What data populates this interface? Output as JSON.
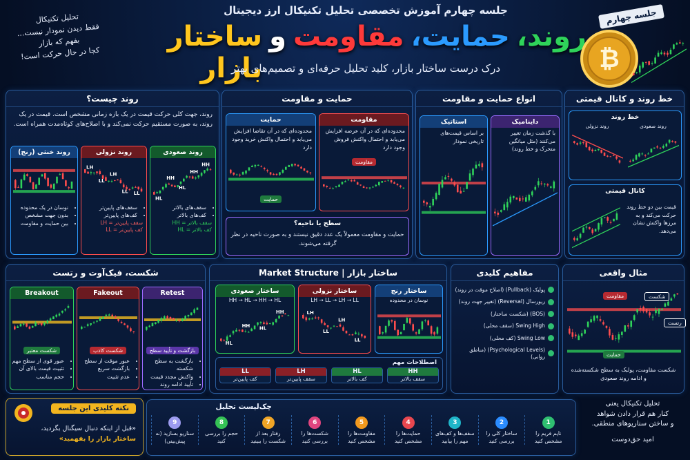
{
  "header": {
    "kicker": "جلسه چهارم آموزش تخصصی تحلیل تکنیکال ارز دیجیتال",
    "title": [
      {
        "text": "روند،",
        "color": "#2fd35a"
      },
      {
        "text": "حمایت،",
        "color": "#2b9bff"
      },
      {
        "text": "مقاومت",
        "color": "#ff3a3a"
      },
      {
        "text": "و",
        "color": "#ffffff"
      },
      {
        "text": "ساختار بازار",
        "color": "#ffc61e"
      }
    ],
    "subtitle": "درک درست ساختار بازار، کلید تحلیل حرفه‌ای و تصمیم‌های بهتر",
    "badge": "جلسه چهارم",
    "coin_symbol": "₿",
    "note": [
      "تحلیل تکنیکال",
      "فقط دیدن نمودار نیست...",
      "بفهم که بازار",
      "کجا در حال حرکت است!"
    ]
  },
  "trend": {
    "title": "روند چیست؟",
    "text": "روند، جهت کلی حرکت قیمت در یک بازه زمانی مشخص است. قیمت در یک روند، به صورت مستقیم حرکت نمی‌کند و با اصلاح‌های کوتاه‌مدت همراه است.",
    "cards": [
      {
        "title": "روند صعودی",
        "labels": [
          "HL",
          "HH",
          "HL",
          "HH",
          "HH"
        ],
        "bullets": [
          "سقف‌های بالاتر",
          "کف‌های بالاتر"
        ],
        "legend": [
          "HH = سقف بالاتر",
          "HL = کف بالاتر"
        ]
      },
      {
        "title": "روند نزولی",
        "labels": [
          "LH",
          "LL",
          "LH",
          "LL",
          "LL"
        ],
        "bullets": [
          "سقف‌های پایین‌تر",
          "کف‌های پایین‌تر"
        ],
        "legend": [
          "LH = سقف پایین‌تر",
          "LL = کف پایین‌تر"
        ]
      },
      {
        "title": "روند خنثی (رنج)",
        "bullets": [
          "نوسان در یک محدوده",
          "بدون جهت مشخص",
          "بین حمایت و مقاومت"
        ]
      }
    ]
  },
  "sr": {
    "title": "حمایت و مقاومت",
    "support": {
      "title": "حمایت",
      "text": "محدوده‌ای که در آن تقاضا افزایش می‌یابد و احتمال واکنش خرید وجود دارد",
      "label": "حمایت"
    },
    "resistance": {
      "title": "مقاومت",
      "text": "محدوده‌ای که در آن عرضه افزایش می‌یابد و احتمال واکنش فروش وجود دارد",
      "label": "مقاومت"
    },
    "zone": {
      "title": "سطح یا ناحیه؟",
      "text": "حمایت و مقاومت معمولاً یک عدد دقیق نیستند و به صورت ناحیه در نظر گرفته می‌شوند."
    }
  },
  "sr_types": {
    "title": "انواع حمایت و مقاومت",
    "static": {
      "title": "استاتیک",
      "text": "بر اساس قیمت‌های تاریخی نمودار"
    },
    "dynamic": {
      "title": "داینامیک",
      "text": "با گذشت زمان تغییر می‌کنند (مثل میانگین متحرک و خط روند)"
    }
  },
  "trendline": {
    "title": "خط روند و کانال قیمتی",
    "line": {
      "title": "خط روند",
      "up": "روند صعودی",
      "down": "روند نزولی"
    },
    "channel": {
      "title": "کانال قیمتی",
      "text": "قیمت بین دو خط روند حرکت می‌کند و به مرزها واکنش نشان می‌دهد."
    }
  },
  "breakout": {
    "title": "شکست، فیک‌آوت و رتست",
    "cards": [
      {
        "title": "Breakout",
        "label": "شکست معتبر",
        "bullets": [
          "عبور قوی از سطح مهم",
          "تثبیت قیمت بالای آن",
          "حجم مناسب"
        ]
      },
      {
        "title": "Fakeout",
        "label": "شکست کاذب",
        "bullets": [
          "عبور موقت از سطح",
          "بازگشت سریع",
          "عدم تثبیت"
        ]
      },
      {
        "title": "Retest",
        "label": "بازگشت و تأیید سطح",
        "bullets": [
          "بازگشت به سطح شکسته",
          "واکنش مجدد قیمت",
          "تأیید ادامه روند"
        ]
      }
    ]
  },
  "structure": {
    "title": "Market Structure | ساختار بازار",
    "cards": [
      {
        "title": "ساختار صعودی",
        "text": "HH → HL → HH → HL",
        "labels": [
          "HL",
          "HH",
          "HL",
          "HH"
        ]
      },
      {
        "title": "ساختار نزولی",
        "text": "LH → LL → LH → LL",
        "labels": [
          "LH",
          "LL",
          "LH",
          "LL"
        ]
      },
      {
        "title": "ساختار رنج",
        "text": "نوسان در محدوده"
      }
    ],
    "terms_title": "اصطلاحات مهم",
    "terms": [
      {
        "code": "HH",
        "meaning": "سقف بالاتر"
      },
      {
        "code": "HL",
        "meaning": "کف بالاتر"
      },
      {
        "code": "LH",
        "meaning": "سقف پایین‌تر"
      },
      {
        "code": "LL",
        "meaning": "کف پایین‌تر"
      }
    ]
  },
  "concepts": {
    "title": "مفاهیم کلیدی",
    "items": [
      "پولبک (Pullback) (اصلاح موقت در روند)",
      "ریورسال (Reversal) (تغییر جهت روند)",
      "(BOS) (شکست ساختار)",
      "Swing High (سقف محلی)",
      "Swing Low (کف محلی)",
      "(Psychological Levels) (مناطق روانی)"
    ]
  },
  "example": {
    "title": "مثال واقعی",
    "resistance": "مقاومت",
    "support": "حمایت",
    "breakout": "شکست",
    "retest": "رتست",
    "text": "شکست مقاومت، پولبک به سطح شکسته‌شده و ادامه روند صعودی"
  },
  "key_point": {
    "title": "نکته کلیدی این جلسه",
    "text": "«قبل از اینکه دنبال سیگنال بگردید،",
    "emphasis": "ساختار بازار را بفهمید»"
  },
  "checklist": {
    "title": "چک‌لیست تحلیل",
    "items": [
      {
        "number": 1,
        "text": "تایم فریم را مشخص کنید",
        "color": "#2fbf71"
      },
      {
        "number": 2,
        "text": "ساختار کلی را بررسی کنید",
        "color": "#2b8cff"
      },
      {
        "number": 3,
        "text": "سقف‌ها و کف‌های مهم را بیابید",
        "color": "#1fb5c9"
      },
      {
        "number": 4,
        "text": "حمایت‌ها را مشخص کنید",
        "color": "#e8474f"
      },
      {
        "number": 5,
        "text": "مقاومت‌ها را مشخص کنید",
        "color": "#f39a1e"
      },
      {
        "number": 6,
        "text": "شکست‌ها را بررسی کنید",
        "color": "#e0457f"
      },
      {
        "number": 7,
        "text": "رفتار بعد از شکست را ببینید",
        "color": "#f0a526"
      },
      {
        "number": 8,
        "text": "حجم را بررسی کنید",
        "color": "#35c255"
      },
      {
        "number": 9,
        "text": "سناریو بسازید (نه پیش‌بینی)",
        "color": "#9d9cf0"
      }
    ]
  },
  "closing": {
    "lines": [
      "تحلیل تکنیکال یعنی",
      "کنار هم قرار دادن شواهد",
      "و ساختن سناریوهای منطقی."
    ],
    "author": "امید حق‌دوست"
  }
}
